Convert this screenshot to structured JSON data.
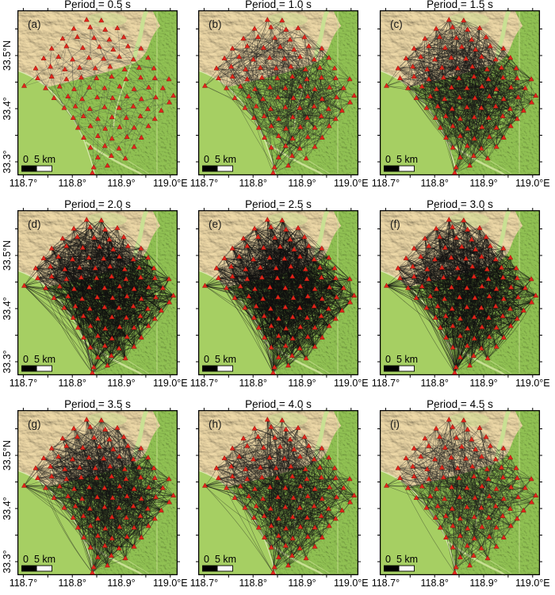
{
  "axis": {
    "lon_labels": [
      "118.7°",
      "118.8°",
      "118.9°",
      "119.0°E"
    ],
    "lat_labels": [
      "33.5°N",
      "33.4°",
      "33.3°"
    ]
  },
  "scalebar": {
    "zero": "0",
    "label": "5 km"
  },
  "panels": [
    {
      "tag": "(a)",
      "title": "Period = 0.5 s",
      "rays": 170,
      "seed": 101,
      "min_d": 0.05,
      "max_d": 0.34,
      "opacity": 0.4,
      "width": 0.55,
      "color": "#3a3a3a"
    },
    {
      "tag": "(b)",
      "title": "Period = 1.0 s",
      "rays": 560,
      "seed": 102,
      "min_d": 0.05,
      "max_d": 0.52,
      "opacity": 0.46,
      "width": 0.55,
      "color": "#1a1a1a"
    },
    {
      "tag": "(c)",
      "title": "Period = 1.5 s",
      "rays": 880,
      "seed": 103,
      "min_d": 0.06,
      "max_d": 0.68,
      "opacity": 0.48,
      "width": 0.55,
      "color": "#141414"
    },
    {
      "tag": "(d)",
      "title": "Period = 2.0 s",
      "rays": 1150,
      "seed": 104,
      "min_d": 0.07,
      "max_d": 0.85,
      "opacity": 0.5,
      "width": 0.6,
      "color": "#101010"
    },
    {
      "tag": "(e)",
      "title": "Period = 2.5 s",
      "rays": 1250,
      "seed": 105,
      "min_d": 0.07,
      "max_d": 0.9,
      "opacity": 0.5,
      "width": 0.6,
      "color": "#101010"
    },
    {
      "tag": "(f)",
      "title": "Period = 3.0 s",
      "rays": 1100,
      "seed": 106,
      "min_d": 0.08,
      "max_d": 0.95,
      "opacity": 0.5,
      "width": 0.6,
      "color": "#101010"
    },
    {
      "tag": "(g)",
      "title": "Period = 3.5 s",
      "rays": 820,
      "seed": 107,
      "min_d": 0.12,
      "max_d": 1.0,
      "opacity": 0.48,
      "width": 0.6,
      "color": "#141414"
    },
    {
      "tag": "(h)",
      "title": "Period = 4.0 s",
      "rays": 660,
      "seed": 108,
      "min_d": 0.13,
      "max_d": 1.0,
      "opacity": 0.46,
      "width": 0.6,
      "color": "#141414"
    },
    {
      "tag": "(i)",
      "title": "Period = 4.5 s",
      "rays": 470,
      "seed": 109,
      "min_d": 0.13,
      "max_d": 1.0,
      "opacity": 0.44,
      "width": 0.6,
      "color": "#181818"
    }
  ],
  "colors": {
    "tan_base": "#ecd7a6",
    "green_base": "#8fbf52",
    "lake": "#a6cf63",
    "channel": "#c9e093",
    "shoreline": "#dce8b2",
    "frame": "#000000",
    "station": "#e3261c",
    "station_edge": "#8f1008"
  },
  "stations": [
    [
      0.432,
      0.058
    ],
    [
      0.524,
      0.062
    ],
    [
      0.352,
      0.112
    ],
    [
      0.454,
      0.103
    ],
    [
      0.548,
      0.118
    ],
    [
      0.624,
      0.108
    ],
    [
      0.282,
      0.172
    ],
    [
      0.374,
      0.162
    ],
    [
      0.478,
      0.168
    ],
    [
      0.574,
      0.178
    ],
    [
      0.664,
      0.163
    ],
    [
      0.214,
      0.232
    ],
    [
      0.306,
      0.218
    ],
    [
      0.408,
      0.228
    ],
    [
      0.512,
      0.222
    ],
    [
      0.598,
      0.238
    ],
    [
      0.69,
      0.218
    ],
    [
      0.772,
      0.232
    ],
    [
      0.164,
      0.292
    ],
    [
      0.256,
      0.282
    ],
    [
      0.344,
      0.298
    ],
    [
      0.446,
      0.288
    ],
    [
      0.538,
      0.294
    ],
    [
      0.636,
      0.282
    ],
    [
      0.724,
      0.298
    ],
    [
      0.816,
      0.288
    ],
    [
      0.114,
      0.352
    ],
    [
      0.206,
      0.342
    ],
    [
      0.296,
      0.358
    ],
    [
      0.388,
      0.348
    ],
    [
      0.486,
      0.352
    ],
    [
      0.578,
      0.342
    ],
    [
      0.67,
      0.358
    ],
    [
      0.76,
      0.348
    ],
    [
      0.852,
      0.352
    ],
    [
      0.042,
      0.458
    ],
    [
      0.126,
      0.412
    ],
    [
      0.214,
      0.402
    ],
    [
      0.306,
      0.418
    ],
    [
      0.398,
      0.408
    ],
    [
      0.494,
      0.412
    ],
    [
      0.588,
      0.402
    ],
    [
      0.678,
      0.418
    ],
    [
      0.77,
      0.408
    ],
    [
      0.858,
      0.412
    ],
    [
      0.946,
      0.418
    ],
    [
      0.176,
      0.472
    ],
    [
      0.264,
      0.462
    ],
    [
      0.354,
      0.478
    ],
    [
      0.448,
      0.468
    ],
    [
      0.544,
      0.472
    ],
    [
      0.638,
      0.462
    ],
    [
      0.728,
      0.478
    ],
    [
      0.82,
      0.468
    ],
    [
      0.908,
      0.472
    ],
    [
      0.974,
      0.518
    ],
    [
      0.228,
      0.532
    ],
    [
      0.316,
      0.522
    ],
    [
      0.404,
      0.538
    ],
    [
      0.498,
      0.528
    ],
    [
      0.594,
      0.532
    ],
    [
      0.684,
      0.522
    ],
    [
      0.774,
      0.538
    ],
    [
      0.864,
      0.528
    ],
    [
      0.948,
      0.558
    ],
    [
      0.292,
      0.592
    ],
    [
      0.362,
      0.582
    ],
    [
      0.452,
      0.598
    ],
    [
      0.544,
      0.588
    ],
    [
      0.634,
      0.592
    ],
    [
      0.724,
      0.582
    ],
    [
      0.814,
      0.598
    ],
    [
      0.898,
      0.608
    ],
    [
      0.348,
      0.652
    ],
    [
      0.412,
      0.642
    ],
    [
      0.502,
      0.658
    ],
    [
      0.59,
      0.648
    ],
    [
      0.68,
      0.652
    ],
    [
      0.768,
      0.642
    ],
    [
      0.858,
      0.658
    ],
    [
      0.378,
      0.712
    ],
    [
      0.456,
      0.702
    ],
    [
      0.548,
      0.718
    ],
    [
      0.638,
      0.708
    ],
    [
      0.728,
      0.712
    ],
    [
      0.818,
      0.702
    ],
    [
      0.414,
      0.772
    ],
    [
      0.502,
      0.762
    ],
    [
      0.59,
      0.778
    ],
    [
      0.684,
      0.768
    ],
    [
      0.774,
      0.772
    ],
    [
      0.456,
      0.832
    ],
    [
      0.546,
      0.822
    ],
    [
      0.634,
      0.838
    ],
    [
      0.728,
      0.828
    ],
    [
      0.502,
      0.892
    ],
    [
      0.586,
      0.882
    ],
    [
      0.674,
      0.898
    ],
    [
      0.476,
      0.952
    ],
    [
      0.562,
      0.942
    ],
    [
      0.468,
      0.985
    ]
  ]
}
